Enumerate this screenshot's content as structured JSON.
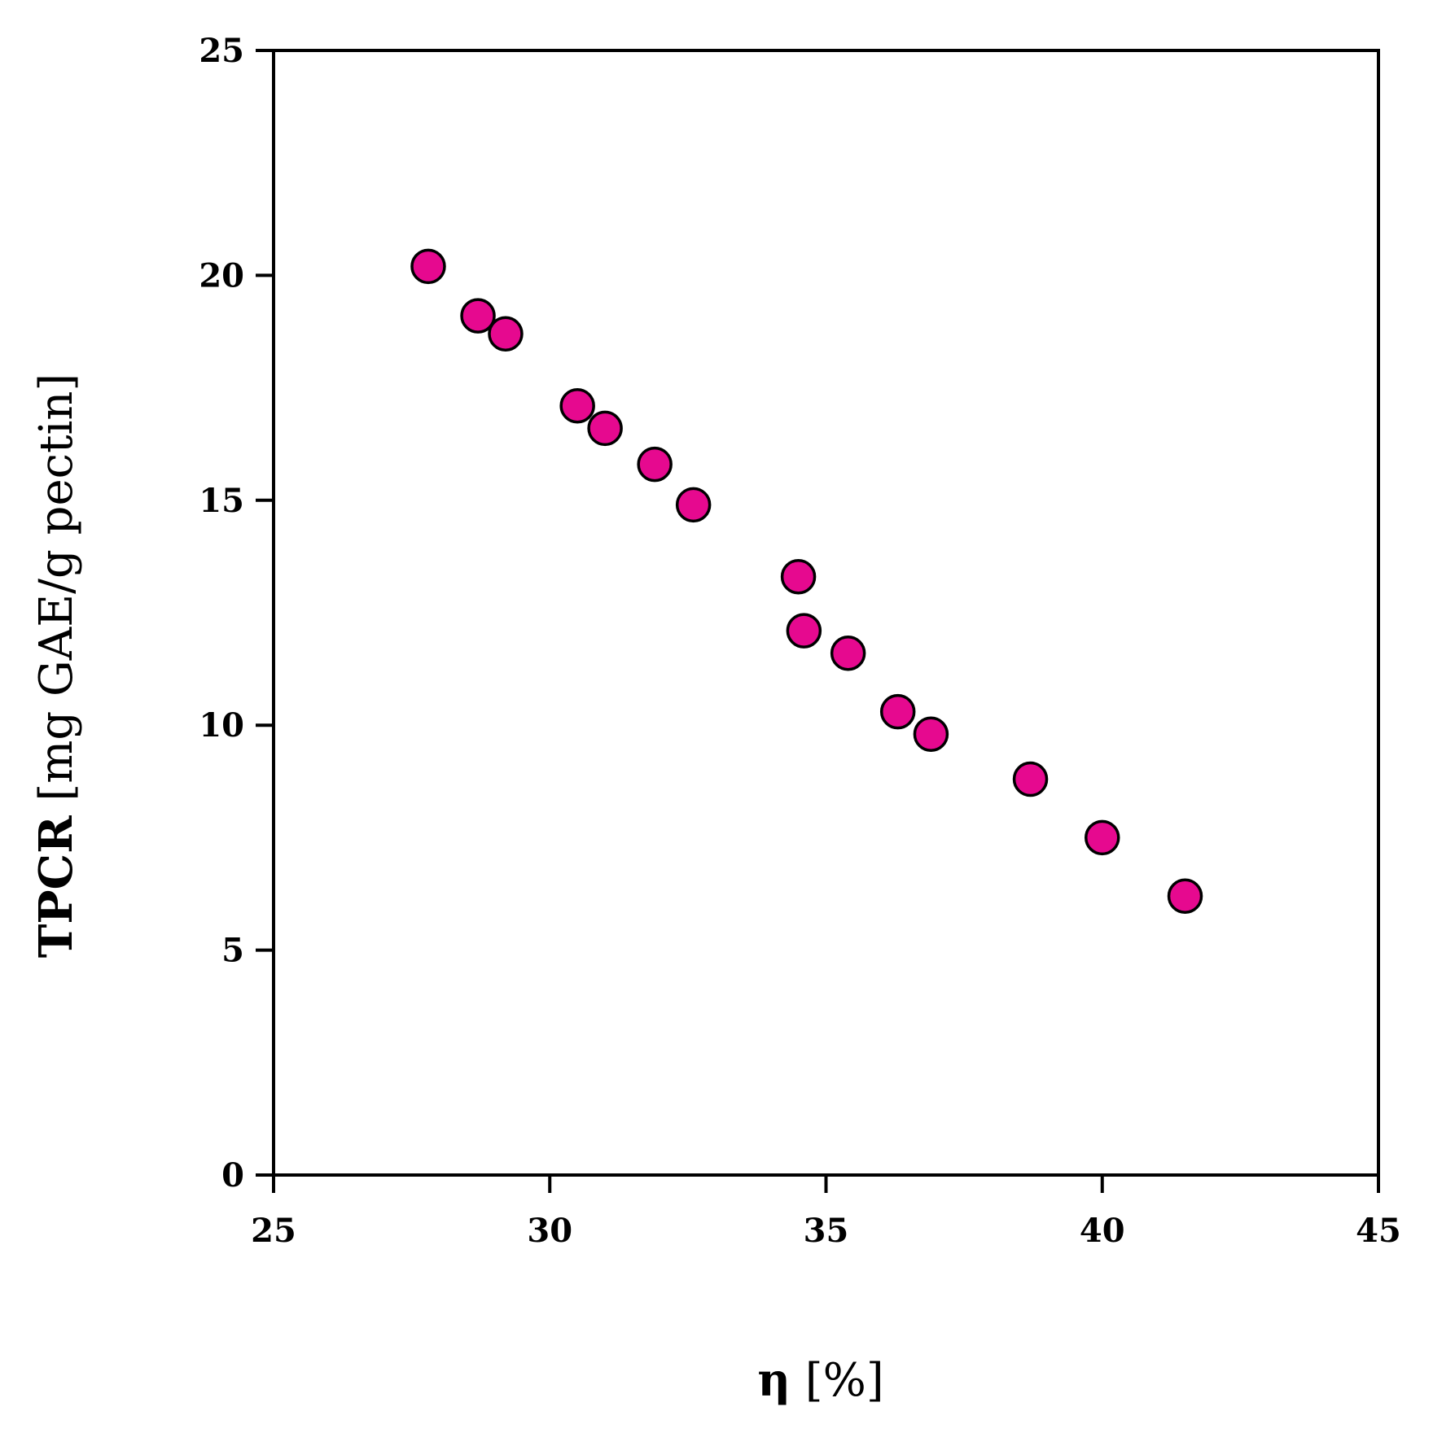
{
  "chart_data": {
    "type": "scatter",
    "title": "",
    "xlabel": "η [%]",
    "xlabel_parts": {
      "symbol": "η",
      "unit": " [%]"
    },
    "ylabel": "TPCR [mg GAE/g pectin]",
    "ylabel_parts": {
      "symbol": "TPCR",
      "unit": " [mg GAE/g pectin]"
    },
    "xlim": [
      25,
      45
    ],
    "ylim": [
      0,
      25
    ],
    "xticks": [
      "25",
      "30",
      "35",
      "40",
      "45"
    ],
    "yticks": [
      "0",
      "5",
      "10",
      "15",
      "20",
      "25"
    ],
    "grid": false,
    "legend": "none",
    "marker_color": "#e6098f",
    "marker_edge_color": "#000000",
    "series": [
      {
        "x": [
          27.8,
          28.7,
          29.2,
          30.5,
          31.0,
          31.9,
          32.6,
          34.5,
          34.6,
          35.4,
          36.3,
          36.9,
          38.7,
          40.0,
          41.5
        ],
        "y": [
          20.2,
          19.1,
          18.7,
          17.1,
          16.6,
          15.8,
          14.9,
          13.3,
          12.1,
          11.6,
          10.3,
          9.8,
          8.8,
          7.5,
          6.2
        ]
      }
    ]
  }
}
